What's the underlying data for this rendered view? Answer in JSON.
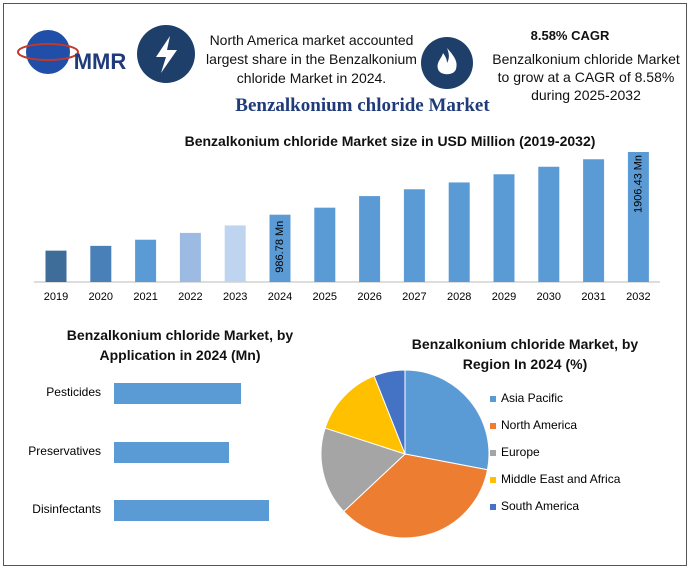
{
  "header": {
    "brand": "MMR",
    "note": "North America market accounted largest share in the Benzalkonium chloride Market in 2024.",
    "cagr_title": "8.58% CAGR",
    "cagr_text": "Benzalkonium chloride Market to grow at a CAGR of 8.58% during 2025-2032",
    "title": "Benzalkonium chloride Market"
  },
  "chart_data": [
    {
      "type": "bar",
      "title": "Benzalkonium chloride Market size in USD Million (2019-2032)",
      "categories": [
        "2019",
        "2020",
        "2021",
        "2022",
        "2023",
        "2024",
        "2025",
        "2026",
        "2027",
        "2028",
        "2029",
        "2030",
        "2031",
        "2032"
      ],
      "values": [
        460,
        530,
        620,
        720,
        830,
        986.78,
        1090,
        1260,
        1360,
        1460,
        1580,
        1690,
        1800,
        1906.43
      ],
      "value_labels": [
        null,
        null,
        null,
        null,
        null,
        "986.78 Mn",
        null,
        null,
        null,
        null,
        null,
        null,
        null,
        "1906.43 Mn"
      ],
      "colors": [
        "#3e6d99",
        "#4a80b8",
        "#5b9bd5",
        "#9dbbe2",
        "#bfd4ee",
        "#5b9bd5",
        "#5b9bd5",
        "#5b9bd5",
        "#5b9bd5",
        "#5b9bd5",
        "#5b9bd5",
        "#5b9bd5",
        "#5b9bd5",
        "#5b9bd5"
      ]
    },
    {
      "type": "hbar",
      "title": "Benzalkonium chloride Market, by Application in 2024 (Mn)",
      "categories": [
        "Pesticides",
        "Preservatives",
        "Disinfectants"
      ],
      "values": [
        127,
        115,
        155
      ],
      "color": "#5b9bd5"
    },
    {
      "type": "pie",
      "title": "Benzalkonium chloride Market, by Region In 2024 (%)",
      "categories": [
        "Asia Pacific",
        "North America",
        "Europe",
        "Middle East and Africa",
        "South America"
      ],
      "values": [
        28,
        35,
        17,
        14,
        6
      ],
      "colors": [
        "#5b9bd5",
        "#ed7d31",
        "#a5a5a5",
        "#ffc000",
        "#4472c4"
      ],
      "legend": "right"
    }
  ]
}
